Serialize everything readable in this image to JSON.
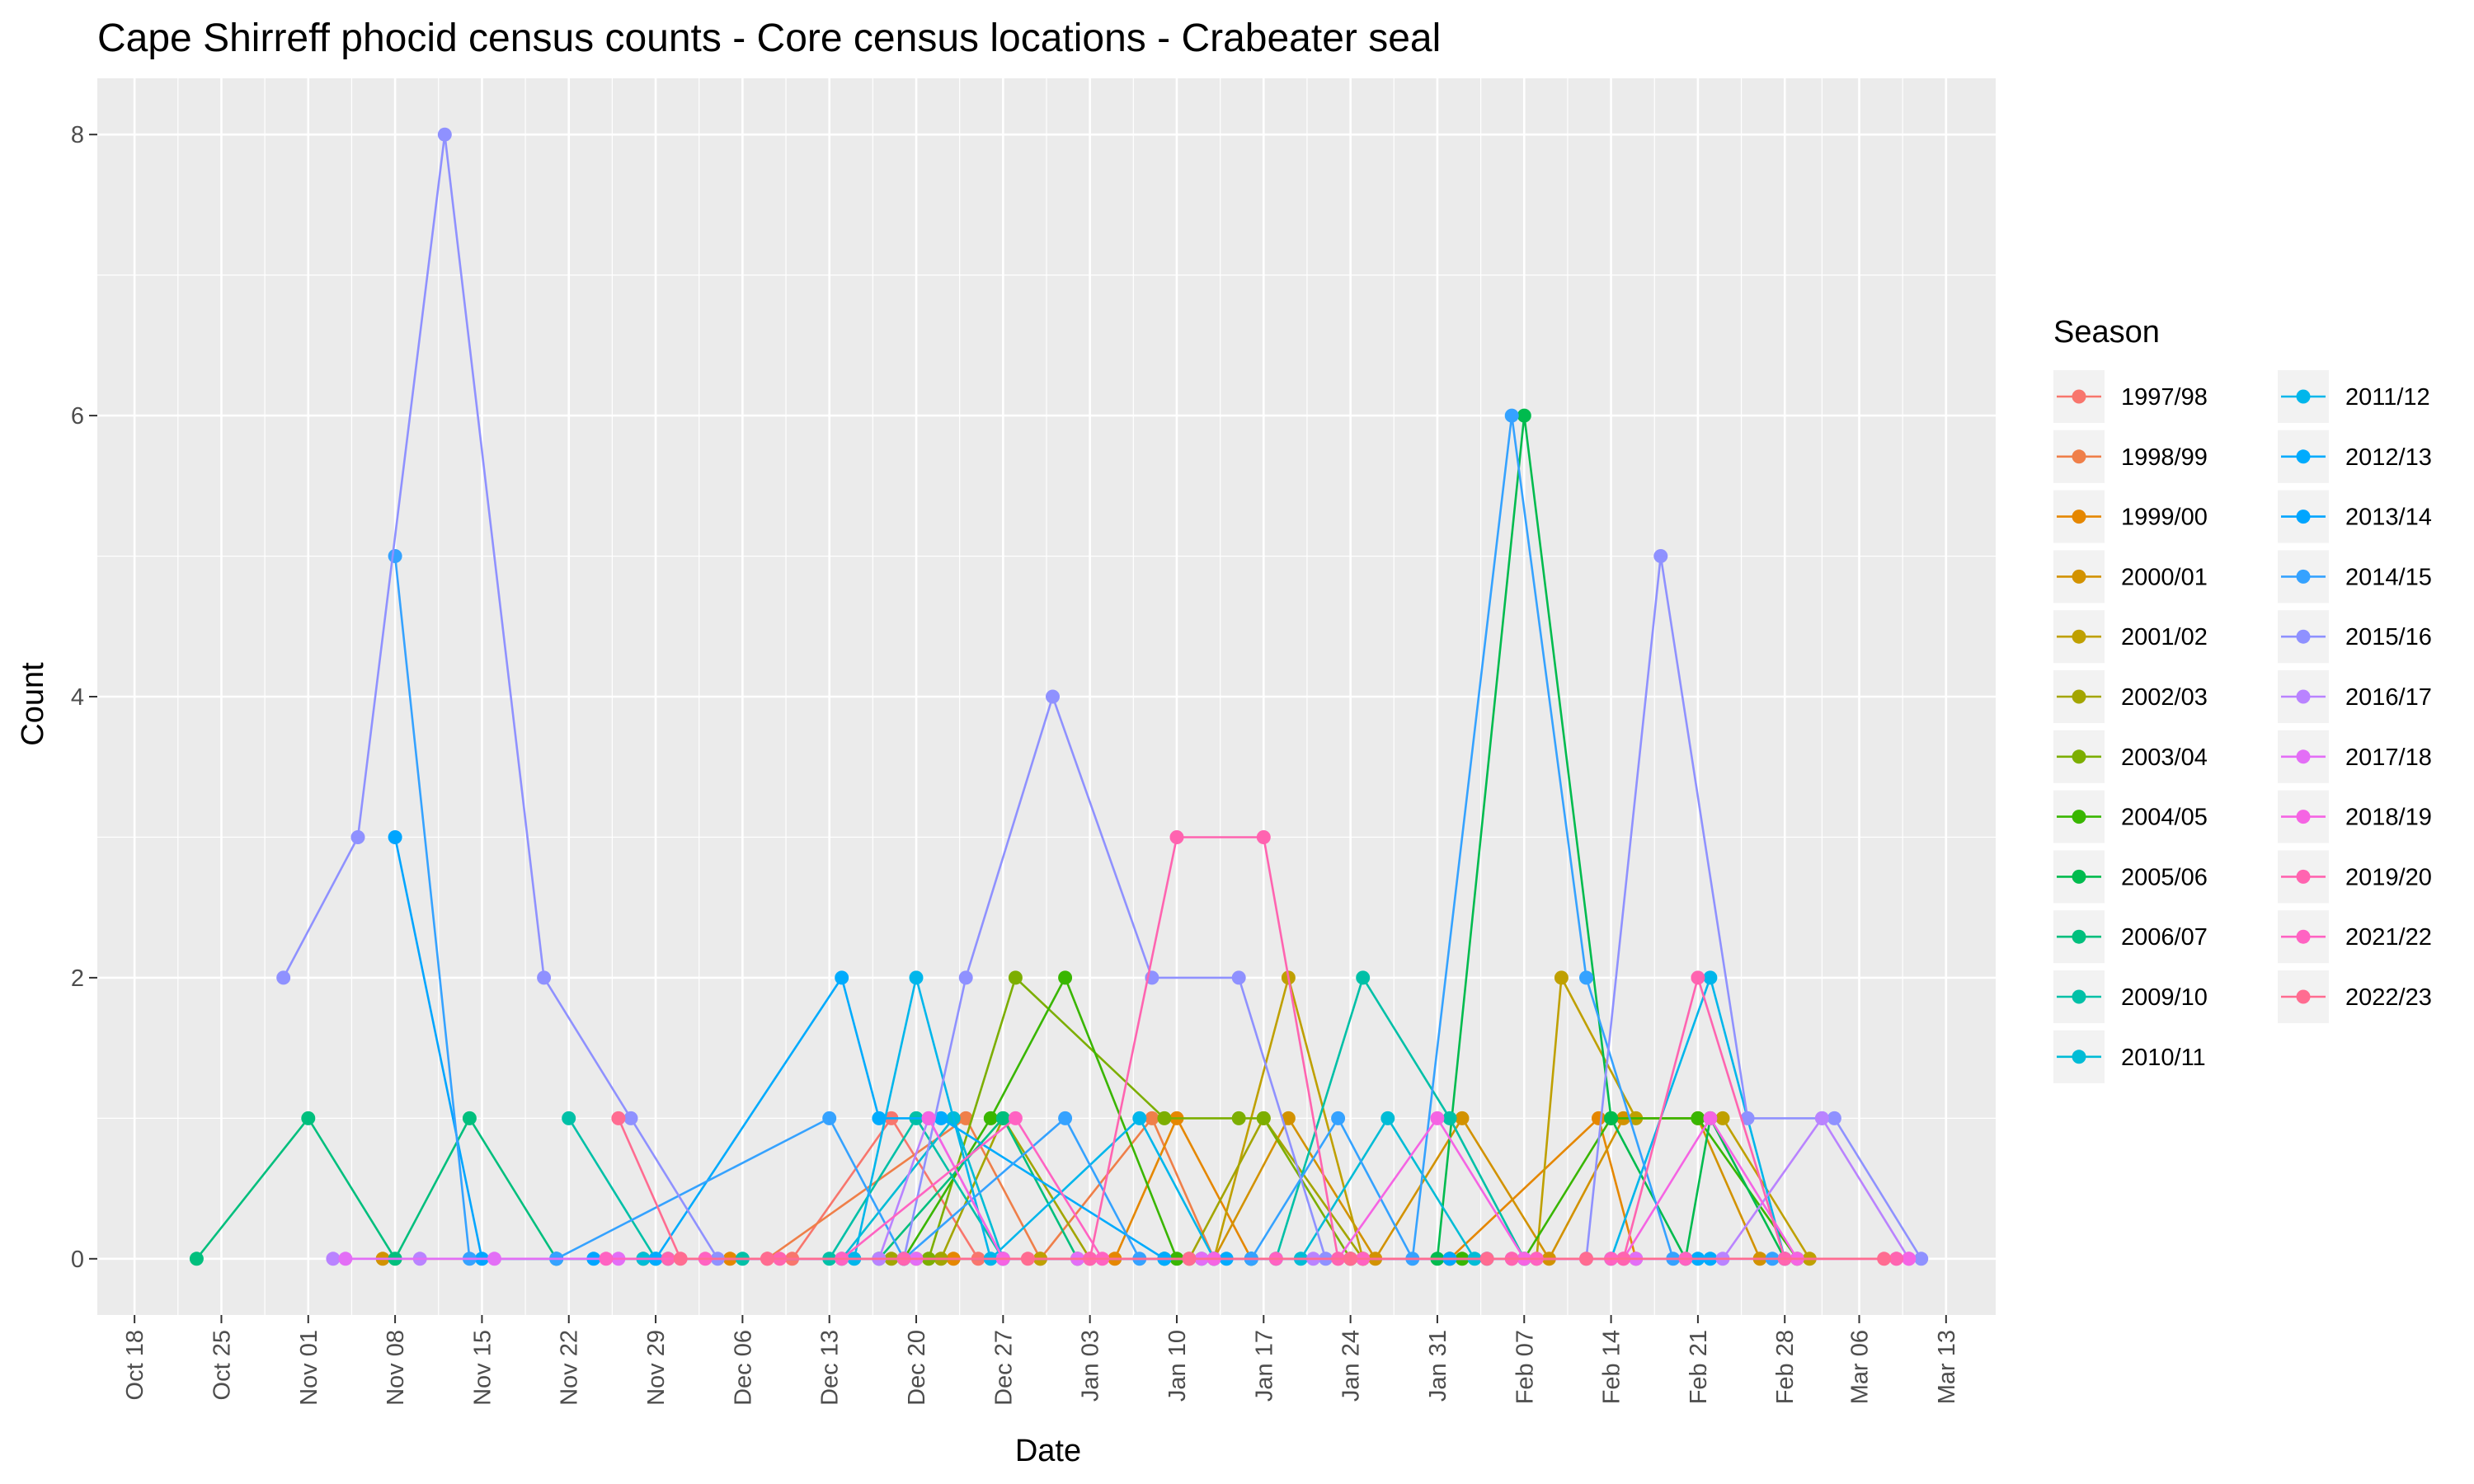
{
  "chart_data": {
    "type": "line",
    "title": "Cape Shirreff phocid census counts - Core census locations - Crabeater seal",
    "xlabel": "Date",
    "ylabel": "Count",
    "x_axis": {
      "kind": "date",
      "range": [
        "Oct 15",
        "Mar 17"
      ],
      "ticks": [
        "Oct 18",
        "Oct 25",
        "Nov 01",
        "Nov 08",
        "Nov 15",
        "Nov 22",
        "Nov 29",
        "Dec 06",
        "Dec 13",
        "Dec 20",
        "Dec 27",
        "Jan 03",
        "Jan 10",
        "Jan 17",
        "Jan 24",
        "Jan 31",
        "Feb 07",
        "Feb 14",
        "Feb 21",
        "Feb 28",
        "Mar 06",
        "Mar 13"
      ]
    },
    "y_axis": {
      "range": [
        -0.4,
        8.4
      ],
      "ticks": [
        0,
        2,
        4,
        6,
        8
      ]
    },
    "grid": true,
    "legend": {
      "title": "Season",
      "position": "right",
      "columns": 2
    },
    "series": [
      {
        "name": "1997/98",
        "color": "#F8766D",
        "points": [
          [
            "Dec 10",
            0
          ],
          [
            "Dec 18",
            1
          ],
          [
            "Dec 25",
            0
          ]
        ]
      },
      {
        "name": "1998/99",
        "color": "#EF7F49",
        "points": [
          [
            "Dec 08",
            0
          ],
          [
            "Dec 24",
            1
          ],
          [
            "Dec 30",
            0
          ],
          [
            "Jan 08",
            1
          ],
          [
            "Jan 13",
            0
          ]
        ]
      },
      {
        "name": "1999/00",
        "color": "#E58700",
        "points": [
          [
            "Dec 05",
            0
          ],
          [
            "Dec 23",
            0
          ],
          [
            "Jan 05",
            0
          ],
          [
            "Jan 10",
            1
          ],
          [
            "Jan 16",
            0
          ],
          [
            "Feb 01",
            0
          ],
          [
            "Feb 13",
            1
          ],
          [
            "Feb 16",
            0
          ]
        ]
      },
      {
        "name": "2000/01",
        "color": "#D29200",
        "points": [
          [
            "Nov 07",
            0
          ],
          [
            "Nov 28",
            0
          ],
          [
            "Jan 02",
            0
          ],
          [
            "Jan 13",
            0
          ],
          [
            "Jan 19",
            1
          ],
          [
            "Jan 26",
            0
          ],
          [
            "Feb 02",
            1
          ],
          [
            "Feb 09",
            0
          ],
          [
            "Feb 15",
            1
          ],
          [
            "Feb 21",
            1
          ],
          [
            "Feb 26",
            0
          ]
        ]
      },
      {
        "name": "2001/02",
        "color": "#BFA000",
        "points": [
          [
            "Dec 20",
            0
          ],
          [
            "Dec 30",
            0
          ],
          [
            "Jan 13",
            0
          ],
          [
            "Jan 19",
            2
          ],
          [
            "Jan 25",
            0
          ],
          [
            "Feb 01",
            0
          ],
          [
            "Feb 08",
            0
          ],
          [
            "Feb 10",
            2
          ],
          [
            "Feb 16",
            1
          ],
          [
            "Feb 23",
            1
          ],
          [
            "Mar 02",
            0
          ]
        ]
      },
      {
        "name": "2002/03",
        "color": "#A3A500",
        "points": [
          [
            "Dec 18",
            0
          ],
          [
            "Dec 22",
            0
          ],
          [
            "Dec 27",
            1
          ],
          [
            "Jan 03",
            0
          ],
          [
            "Jan 11",
            0
          ],
          [
            "Jan 17",
            1
          ],
          [
            "Jan 25",
            0
          ]
        ]
      },
      {
        "name": "2003/04",
        "color": "#7CAE00",
        "points": [
          [
            "Dec 21",
            0
          ],
          [
            "Dec 28",
            2
          ],
          [
            "Jan 09",
            1
          ],
          [
            "Jan 15",
            1
          ],
          [
            "Jan 17",
            1
          ],
          [
            "Jan 24",
            0
          ]
        ]
      },
      {
        "name": "2004/05",
        "color": "#39B600",
        "points": [
          [
            "Dec 19",
            0
          ],
          [
            "Dec 26",
            1
          ],
          [
            "Jan 01",
            2
          ],
          [
            "Jan 10",
            0
          ],
          [
            "Jan 24",
            0
          ],
          [
            "Feb 02",
            0
          ],
          [
            "Feb 07",
            0
          ],
          [
            "Feb 14",
            1
          ],
          [
            "Feb 21",
            1
          ],
          [
            "Mar 01",
            0
          ]
        ]
      },
      {
        "name": "2005/06",
        "color": "#00BB4E",
        "points": [
          [
            "Jan 31",
            0
          ],
          [
            "Feb 07",
            6
          ],
          [
            "Feb 14",
            1
          ],
          [
            "Feb 20",
            0
          ],
          [
            "Feb 22",
            1
          ],
          [
            "Feb 28",
            0
          ]
        ]
      },
      {
        "name": "2006/07",
        "color": "#00BF7D",
        "points": [
          [
            "Oct 23",
            0
          ],
          [
            "Nov 01",
            1
          ],
          [
            "Nov 08",
            0
          ],
          [
            "Nov 14",
            1
          ],
          [
            "Nov 21",
            0
          ],
          [
            "Dec 17",
            0
          ],
          [
            "Dec 27",
            1
          ],
          [
            "Jan 02",
            0
          ],
          [
            "Jan 09",
            0
          ],
          [
            "Jan 16",
            0
          ]
        ]
      },
      {
        "name": "2009/10",
        "color": "#00C0A7",
        "points": [
          [
            "Nov 22",
            1
          ],
          [
            "Nov 29",
            0
          ],
          [
            "Dec 06",
            0
          ],
          [
            "Dec 13",
            0
          ],
          [
            "Dec 20",
            1
          ],
          [
            "Dec 27",
            0
          ],
          [
            "Jan 12",
            0
          ],
          [
            "Jan 18",
            0
          ],
          [
            "Jan 25",
            2
          ],
          [
            "Feb 01",
            1
          ],
          [
            "Feb 07",
            0
          ]
        ]
      },
      {
        "name": "2010/11",
        "color": "#00BCD6",
        "points": [
          [
            "Nov 28",
            0
          ],
          [
            "Dec 14",
            0
          ],
          [
            "Dec 23",
            1
          ],
          [
            "Dec 27",
            0
          ],
          [
            "Jan 09",
            0
          ],
          [
            "Jan 16",
            0
          ],
          [
            "Jan 20",
            0
          ],
          [
            "Jan 27",
            1
          ],
          [
            "Feb 03",
            0
          ]
        ]
      },
      {
        "name": "2011/12",
        "color": "#00B6EB",
        "points": [
          [
            "Nov 30",
            0
          ],
          [
            "Dec 15",
            0
          ],
          [
            "Dec 20",
            2
          ],
          [
            "Dec 26",
            0
          ],
          [
            "Jan 07",
            1
          ],
          [
            "Jan 13",
            0
          ],
          [
            "Feb 14",
            0
          ],
          [
            "Feb 22",
            2
          ],
          [
            "Feb 28",
            0
          ]
        ]
      },
      {
        "name": "2012/13",
        "color": "#00ABFD",
        "points": [
          [
            "Nov 29",
            0
          ],
          [
            "Dec 14",
            2
          ],
          [
            "Dec 17",
            1
          ],
          [
            "Dec 22",
            1
          ],
          [
            "Jan 09",
            0
          ],
          [
            "Jan 14",
            0
          ],
          [
            "Feb 21",
            0
          ],
          [
            "Feb 22",
            0
          ]
        ]
      },
      {
        "name": "2013/14",
        "color": "#00A5FF",
        "points": [
          [
            "Nov 08",
            3
          ],
          [
            "Nov 15",
            0
          ],
          [
            "Nov 21",
            0
          ],
          [
            "Nov 24",
            0
          ],
          [
            "Dec 19",
            0
          ],
          [
            "Jan 13",
            0
          ],
          [
            "Jan 16",
            0
          ],
          [
            "Feb 01",
            0
          ],
          [
            "Feb 04",
            0
          ]
        ]
      },
      {
        "name": "2014/15",
        "color": "#35A2FF",
        "points": [
          [
            "Nov 08",
            5
          ],
          [
            "Nov 14",
            0
          ],
          [
            "Nov 21",
            0
          ],
          [
            "Dec 13",
            1
          ],
          [
            "Dec 19",
            0
          ],
          [
            "Jan 01",
            1
          ],
          [
            "Jan 07",
            0
          ],
          [
            "Jan 16",
            0
          ],
          [
            "Jan 23",
            1
          ],
          [
            "Jan 29",
            0
          ],
          [
            "Feb 06",
            6
          ],
          [
            "Feb 12",
            2
          ],
          [
            "Feb 19",
            0
          ],
          [
            "Feb 27",
            0
          ]
        ]
      },
      {
        "name": "2015/16",
        "color": "#8F91FF",
        "points": [
          [
            "Oct 30",
            2
          ],
          [
            "Nov 05",
            3
          ],
          [
            "Nov 12",
            8
          ],
          [
            "Nov 20",
            2
          ],
          [
            "Nov 27",
            1
          ],
          [
            "Dec 04",
            0
          ],
          [
            "Dec 19",
            0
          ],
          [
            "Dec 24",
            2
          ],
          [
            "Dec 31",
            4
          ],
          [
            "Jan 08",
            2
          ],
          [
            "Jan 15",
            2
          ],
          [
            "Jan 22",
            0
          ],
          [
            "Feb 12",
            0
          ],
          [
            "Feb 18",
            5
          ],
          [
            "Feb 25",
            1
          ],
          [
            "Mar 03",
            1
          ],
          [
            "Mar 04",
            1
          ],
          [
            "Mar 11",
            0
          ]
        ]
      },
      {
        "name": "2016/17",
        "color": "#B983FF",
        "points": [
          [
            "Nov 03",
            0
          ],
          [
            "Nov 10",
            0
          ],
          [
            "Dec 17",
            0
          ],
          [
            "Dec 21",
            1
          ],
          [
            "Dec 27",
            0
          ],
          [
            "Jan 02",
            0
          ],
          [
            "Jan 13",
            0
          ],
          [
            "Jan 21",
            0
          ],
          [
            "Feb 16",
            0
          ],
          [
            "Feb 23",
            0
          ],
          [
            "Mar 03",
            1
          ],
          [
            "Mar 10",
            0
          ]
        ]
      },
      {
        "name": "2017/18",
        "color": "#E36EF6",
        "points": [
          [
            "Nov 04",
            0
          ],
          [
            "Nov 16",
            0
          ],
          [
            "Nov 26",
            0
          ],
          [
            "Dec 20",
            0
          ],
          [
            "Jan 02",
            0
          ],
          [
            "Jan 12",
            0
          ],
          [
            "Jan 24",
            0
          ],
          [
            "Feb 06",
            0
          ],
          [
            "Feb 16",
            0
          ],
          [
            "Feb 28",
            0
          ],
          [
            "Mar 09",
            0
          ]
        ]
      },
      {
        "name": "2018/19",
        "color": "#F564E3",
        "points": [
          [
            "Dec 21",
            1
          ],
          [
            "Dec 27",
            0
          ],
          [
            "Jan 03",
            0
          ],
          [
            "Jan 13",
            0
          ],
          [
            "Jan 23",
            0
          ],
          [
            "Jan 31",
            1
          ],
          [
            "Feb 07",
            0
          ],
          [
            "Feb 15",
            0
          ],
          [
            "Feb 22",
            1
          ],
          [
            "Mar 01",
            0
          ],
          [
            "Mar 10",
            0
          ]
        ]
      },
      {
        "name": "2019/20",
        "color": "#FF64B0",
        "points": [
          [
            "Nov 30",
            0
          ],
          [
            "Dec 09",
            0
          ],
          [
            "Dec 19",
            0
          ],
          [
            "Jan 03",
            0
          ],
          [
            "Jan 10",
            3
          ],
          [
            "Jan 17",
            3
          ],
          [
            "Jan 23",
            0
          ],
          [
            "Feb 06",
            0
          ],
          [
            "Feb 15",
            0
          ],
          [
            "Feb 21",
            2
          ],
          [
            "Feb 28",
            0
          ],
          [
            "Mar 09",
            0
          ]
        ]
      },
      {
        "name": "2021/22",
        "color": "#FF63C2",
        "points": [
          [
            "Nov 25",
            0
          ],
          [
            "Dec 03",
            0
          ],
          [
            "Dec 14",
            0
          ],
          [
            "Dec 28",
            1
          ],
          [
            "Jan 04",
            0
          ],
          [
            "Jan 18",
            0
          ],
          [
            "Jan 25",
            0
          ],
          [
            "Feb 08",
            0
          ],
          [
            "Feb 14",
            0
          ],
          [
            "Feb 20",
            0
          ]
        ]
      },
      {
        "name": "2022/23",
        "color": "#FF6C91",
        "points": [
          [
            "Nov 26",
            1
          ],
          [
            "Dec 01",
            0
          ],
          [
            "Dec 08",
            0
          ],
          [
            "Dec 29",
            0
          ],
          [
            "Jan 11",
            0
          ],
          [
            "Jan 24",
            0
          ],
          [
            "Feb 04",
            0
          ],
          [
            "Feb 12",
            0
          ],
          [
            "Mar 08",
            0
          ]
        ]
      }
    ]
  }
}
